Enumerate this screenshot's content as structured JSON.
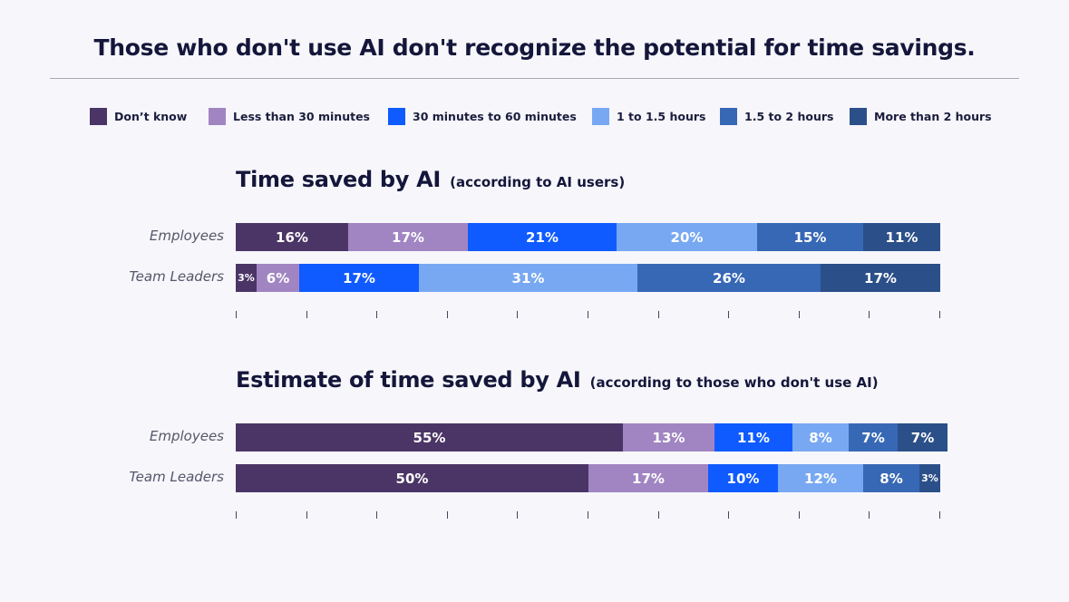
{
  "headline": "Those who don't use AI don't recognize the potential for time savings.",
  "colors": [
    "#4b3566",
    "#a185c2",
    "#0f5bff",
    "#78a8f2",
    "#3768b5",
    "#2b4f89"
  ],
  "legend": [
    {
      "label": "Don’t know"
    },
    {
      "label": "Less than 30 minutes"
    },
    {
      "label": "30 minutes to 60 minutes"
    },
    {
      "label": "1 to 1.5 hours"
    },
    {
      "label": "1.5 to 2 hours"
    },
    {
      "label": "More than 2 hours"
    }
  ],
  "chart_data": [
    {
      "type": "bar",
      "stacked": true,
      "orientation": "horizontal",
      "title": "Time saved by AI",
      "subtitle": "(according to AI users)",
      "categories": [
        "Employees",
        "Team Leaders"
      ],
      "series": [
        {
          "name": "Don’t know",
          "values": [
            16,
            3
          ]
        },
        {
          "name": "Less than 30 minutes",
          "values": [
            17,
            6
          ]
        },
        {
          "name": "30 minutes to 60 minutes",
          "values": [
            21,
            17
          ]
        },
        {
          "name": "1 to 1.5 hours",
          "values": [
            20,
            31
          ]
        },
        {
          "name": "1.5 to 2 hours",
          "values": [
            15,
            26
          ]
        },
        {
          "name": "More than 2 hours",
          "values": [
            11,
            17
          ]
        }
      ],
      "value_suffix": "%",
      "xlim": [
        0,
        100
      ],
      "ticks": 11
    },
    {
      "type": "bar",
      "stacked": true,
      "orientation": "horizontal",
      "title": "Estimate of time saved by AI",
      "subtitle": "(according to those who don't use AI)",
      "categories": [
        "Employees",
        "Team Leaders"
      ],
      "series": [
        {
          "name": "Don’t know",
          "values": [
            55,
            50
          ]
        },
        {
          "name": "Less than 30 minutes",
          "values": [
            13,
            17
          ]
        },
        {
          "name": "30 minutes to 60 minutes",
          "values": [
            11,
            10
          ]
        },
        {
          "name": "1 to 1.5 hours",
          "values": [
            8,
            12
          ]
        },
        {
          "name": "1.5 to 2 hours",
          "values": [
            7,
            8
          ]
        },
        {
          "name": "More than 2 hours",
          "values": [
            7,
            3
          ]
        }
      ],
      "value_suffix": "%",
      "xlim": [
        0,
        100
      ],
      "ticks": 11
    }
  ]
}
